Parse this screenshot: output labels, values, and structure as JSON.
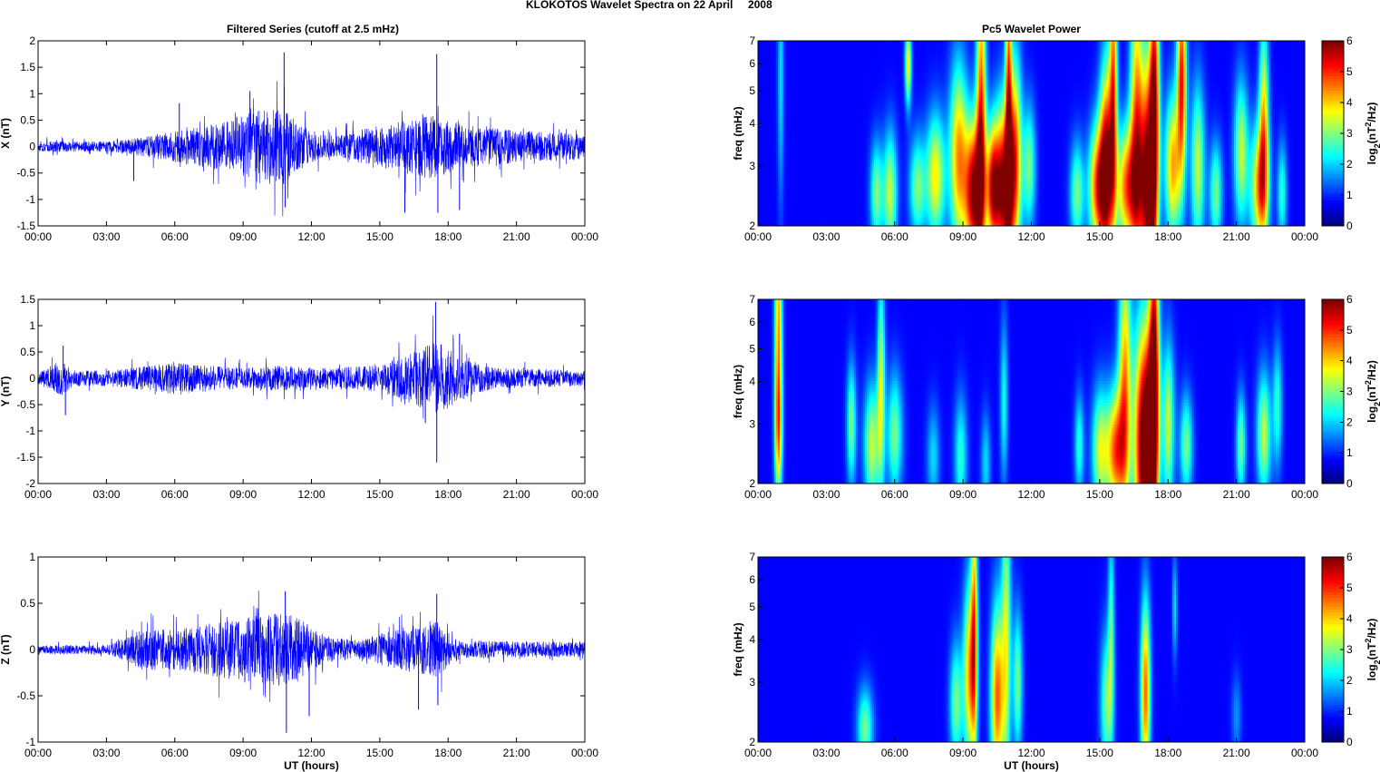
{
  "figure": {
    "suptitle": "KLOKOTOS Wavelet Spectra on 22 April     2008",
    "left_title": "Filtered Series (cutoff at 2.5 mHz)",
    "right_title": "Pc5 Wavelet Power"
  },
  "colors": {
    "trace": "#0000ff",
    "background_low": "#00008f",
    "colormap": "jet"
  },
  "chart_data": [
    {
      "type": "line",
      "id": "x",
      "ylabel": "X (nT)",
      "xlabel": "",
      "ylim": [
        -1.5,
        2
      ],
      "yticks": [
        "-1.5",
        "-1",
        "-0.5",
        "0",
        "0.5",
        "1",
        "1.5",
        "2"
      ],
      "xticks": [
        "00:00",
        "03:00",
        "06:00",
        "09:00",
        "12:00",
        "15:00",
        "18:00",
        "21:00",
        "00:00"
      ],
      "envelope_hours": [
        0,
        3,
        4,
        6,
        8,
        9,
        10,
        10.8,
        11,
        12,
        13,
        15,
        16,
        17,
        17.5,
        18,
        19,
        21,
        24
      ],
      "envelope_amplitude": [
        0.1,
        0.1,
        0.15,
        0.3,
        0.45,
        0.6,
        0.75,
        0.8,
        0.6,
        0.3,
        0.2,
        0.4,
        0.5,
        0.6,
        0.6,
        0.5,
        0.4,
        0.3,
        0.25
      ],
      "peaks": [
        [
          10.8,
          1.78
        ],
        [
          10.85,
          -1.15
        ],
        [
          17.5,
          1.75
        ],
        [
          17.55,
          -1.25
        ],
        [
          16.1,
          -1.25
        ],
        [
          18.5,
          -1.2
        ],
        [
          9.3,
          1.05
        ],
        [
          6.2,
          0.82
        ],
        [
          4.2,
          -0.65
        ]
      ]
    },
    {
      "type": "line",
      "id": "y",
      "ylabel": "Y (nT)",
      "xlabel": "",
      "ylim": [
        -2,
        1.5
      ],
      "yticks": [
        "-2",
        "-1.5",
        "-1",
        "-0.5",
        "0",
        "0.5",
        "1",
        "1.5"
      ],
      "xticks": [
        "00:00",
        "03:00",
        "06:00",
        "09:00",
        "12:00",
        "15:00",
        "18:00",
        "21:00",
        "00:00"
      ],
      "envelope_hours": [
        0,
        1,
        1.5,
        3,
        5,
        6,
        9,
        11,
        13,
        15,
        16.5,
        17.5,
        18.5,
        20,
        24
      ],
      "envelope_amplitude": [
        0.1,
        0.35,
        0.15,
        0.15,
        0.25,
        0.3,
        0.2,
        0.25,
        0.2,
        0.25,
        0.5,
        0.75,
        0.4,
        0.2,
        0.15
      ],
      "peaks": [
        [
          17.45,
          1.45
        ],
        [
          17.5,
          -1.6
        ],
        [
          17.0,
          -0.85
        ],
        [
          1.1,
          0.62
        ],
        [
          1.2,
          -0.7
        ],
        [
          18.5,
          0.85
        ]
      ]
    },
    {
      "type": "line",
      "id": "z",
      "ylabel": "Z (nT)",
      "xlabel": "UT (hours)",
      "ylim": [
        -1,
        1
      ],
      "yticks": [
        "-1",
        "-0.5",
        "0",
        "0.5",
        "1"
      ],
      "xticks": [
        "00:00",
        "03:00",
        "06:00",
        "09:00",
        "12:00",
        "15:00",
        "18:00",
        "21:00",
        "00:00"
      ],
      "envelope_hours": [
        0,
        3,
        3.8,
        4.5,
        6,
        8,
        9,
        10.5,
        11.5,
        12.5,
        14,
        15.5,
        17.5,
        18.5,
        24
      ],
      "envelope_amplitude": [
        0.05,
        0.05,
        0.12,
        0.22,
        0.22,
        0.3,
        0.35,
        0.4,
        0.35,
        0.15,
        0.1,
        0.2,
        0.3,
        0.1,
        0.08
      ],
      "peaks": [
        [
          10.85,
          0.63
        ],
        [
          10.9,
          -0.9
        ],
        [
          17.5,
          0.6
        ],
        [
          17.55,
          -0.6
        ],
        [
          11.9,
          -0.72
        ],
        [
          16.7,
          -0.65
        ]
      ]
    },
    {
      "type": "heatmap",
      "id": "pc5-x",
      "ylabel": "freq (mHz)",
      "xlabel": "",
      "yscale": "log",
      "ylim": [
        2,
        7
      ],
      "yticks": [
        "2",
        "3",
        "4",
        "5",
        "6",
        "7"
      ],
      "xticks": [
        "00:00",
        "03:00",
        "06:00",
        "09:00",
        "12:00",
        "15:00",
        "18:00",
        "21:00",
        "00:00"
      ],
      "colorbar": {
        "label": "log2(nT2/Hz)",
        "ticks": [
          "0",
          "1",
          "2",
          "3",
          "4",
          "5",
          "6"
        ],
        "range": [
          0,
          6
        ]
      },
      "blobs": [
        [
          1.0,
          5.5,
          0.1,
          1.2,
          1.5
        ],
        [
          5.2,
          2.5,
          0.2,
          0.5,
          2.5
        ],
        [
          5.8,
          2.5,
          0.22,
          0.6,
          3.0
        ],
        [
          6.6,
          6.0,
          0.1,
          0.4,
          3.5
        ],
        [
          7.0,
          2.6,
          0.25,
          0.5,
          2.5
        ],
        [
          7.8,
          2.8,
          0.3,
          0.6,
          3.5
        ],
        [
          8.8,
          3.2,
          0.28,
          0.9,
          4.0
        ],
        [
          9.5,
          2.5,
          0.3,
          0.7,
          6.0
        ],
        [
          9.8,
          4.5,
          0.15,
          1.5,
          4.5
        ],
        [
          10.3,
          2.6,
          0.2,
          0.6,
          4.5
        ],
        [
          10.8,
          2.6,
          0.3,
          0.8,
          6.0
        ],
        [
          11.0,
          5.5,
          0.1,
          1.8,
          4.0
        ],
        [
          11.3,
          3.2,
          0.2,
          1.0,
          4.0
        ],
        [
          11.9,
          3.0,
          0.2,
          0.6,
          2.5
        ],
        [
          14.0,
          2.5,
          0.22,
          0.5,
          2.5
        ],
        [
          14.9,
          2.6,
          0.28,
          0.6,
          4.5
        ],
        [
          15.3,
          3.0,
          0.22,
          1.0,
          5.5
        ],
        [
          15.6,
          5.5,
          0.12,
          1.3,
          4.0
        ],
        [
          16.2,
          2.6,
          0.35,
          0.6,
          4.5
        ],
        [
          16.6,
          4.0,
          0.2,
          1.5,
          4.0
        ],
        [
          17.1,
          2.7,
          0.25,
          1.2,
          6.0
        ],
        [
          17.4,
          4.5,
          0.15,
          1.5,
          5.0
        ],
        [
          18.2,
          3.0,
          0.25,
          0.7,
          4.0
        ],
        [
          18.6,
          5.5,
          0.15,
          1.0,
          5.0
        ],
        [
          19.3,
          3.0,
          0.22,
          0.8,
          3.0
        ],
        [
          20.1,
          2.5,
          0.2,
          0.5,
          2.5
        ],
        [
          21.2,
          3.3,
          0.22,
          0.7,
          3.0
        ],
        [
          22.0,
          2.6,
          0.28,
          0.6,
          4.0
        ],
        [
          22.2,
          4.0,
          0.15,
          1.0,
          3.5
        ],
        [
          23.0,
          2.5,
          0.15,
          0.5,
          2.0
        ]
      ]
    },
    {
      "type": "heatmap",
      "id": "pc5-y",
      "ylabel": "freq (mHz)",
      "xlabel": "",
      "yscale": "log",
      "ylim": [
        2,
        7
      ],
      "yticks": [
        "2",
        "3",
        "4",
        "5",
        "6",
        "7"
      ],
      "xticks": [
        "00:00",
        "03:00",
        "06:00",
        "09:00",
        "12:00",
        "15:00",
        "18:00",
        "21:00",
        "00:00"
      ],
      "colorbar": {
        "label": "log2(nT2/Hz)",
        "ticks": [
          "0",
          "1",
          "2",
          "3",
          "4",
          "5",
          "6"
        ],
        "range": [
          0,
          6
        ]
      },
      "blobs": [
        [
          0.9,
          5.5,
          0.12,
          1.3,
          4.0
        ],
        [
          0.9,
          2.8,
          0.12,
          0.6,
          2.5
        ],
        [
          4.1,
          3.0,
          0.15,
          0.6,
          2.5
        ],
        [
          5.0,
          2.6,
          0.25,
          0.6,
          3.0
        ],
        [
          5.4,
          4.0,
          0.12,
          1.0,
          3.0
        ],
        [
          6.0,
          2.8,
          0.25,
          0.6,
          2.5
        ],
        [
          7.7,
          2.4,
          0.2,
          0.5,
          1.5
        ],
        [
          8.9,
          2.4,
          0.2,
          0.6,
          2.0
        ],
        [
          10.0,
          2.3,
          0.15,
          0.5,
          1.5
        ],
        [
          10.8,
          3.5,
          0.12,
          0.8,
          1.8
        ],
        [
          14.1,
          2.6,
          0.15,
          0.5,
          2.0
        ],
        [
          15.0,
          2.5,
          0.25,
          0.6,
          3.0
        ],
        [
          15.7,
          2.5,
          0.3,
          0.6,
          4.5
        ],
        [
          16.1,
          4.0,
          0.2,
          1.3,
          4.0
        ],
        [
          16.8,
          2.6,
          0.25,
          1.2,
          5.0
        ],
        [
          17.2,
          2.5,
          0.22,
          1.2,
          6.0
        ],
        [
          17.4,
          4.5,
          0.15,
          1.5,
          5.0
        ],
        [
          18.0,
          3.0,
          0.2,
          0.8,
          3.0
        ],
        [
          18.8,
          2.6,
          0.2,
          0.5,
          2.5
        ],
        [
          21.2,
          2.6,
          0.15,
          0.5,
          2.5
        ],
        [
          22.2,
          2.8,
          0.22,
          0.6,
          3.0
        ],
        [
          22.8,
          3.4,
          0.15,
          0.6,
          2.0
        ]
      ]
    },
    {
      "type": "heatmap",
      "id": "pc5-z",
      "ylabel": "freq (mHz)",
      "xlabel": "UT (hours)",
      "yscale": "log",
      "ylim": [
        2,
        7
      ],
      "yticks": [
        "2",
        "3",
        "4",
        "5",
        "6",
        "7"
      ],
      "xticks": [
        "00:00",
        "03:00",
        "06:00",
        "09:00",
        "12:00",
        "15:00",
        "18:00",
        "21:00",
        "00:00"
      ],
      "colorbar": {
        "label": "log2(nT2/Hz)",
        "ticks": [
          "0",
          "1",
          "2",
          "3",
          "4",
          "5",
          "6"
        ],
        "range": [
          0,
          6
        ]
      },
      "blobs": [
        [
          4.7,
          2.2,
          0.25,
          0.4,
          2.5
        ],
        [
          8.7,
          2.6,
          0.2,
          0.6,
          2.5
        ],
        [
          9.3,
          3.2,
          0.2,
          0.9,
          4.0
        ],
        [
          9.5,
          4.5,
          0.1,
          1.3,
          3.5
        ],
        [
          10.5,
          2.7,
          0.2,
          0.9,
          4.5
        ],
        [
          10.9,
          4.0,
          0.15,
          1.5,
          3.0
        ],
        [
          11.4,
          3.0,
          0.15,
          0.7,
          2.5
        ],
        [
          15.3,
          2.6,
          0.2,
          0.7,
          2.5
        ],
        [
          15.5,
          4.5,
          0.1,
          1.0,
          2.0
        ],
        [
          17.0,
          2.8,
          0.15,
          0.9,
          4.5
        ],
        [
          18.3,
          5.0,
          0.08,
          0.5,
          1.5
        ],
        [
          21.0,
          2.4,
          0.15,
          0.4,
          1.0
        ]
      ]
    }
  ]
}
